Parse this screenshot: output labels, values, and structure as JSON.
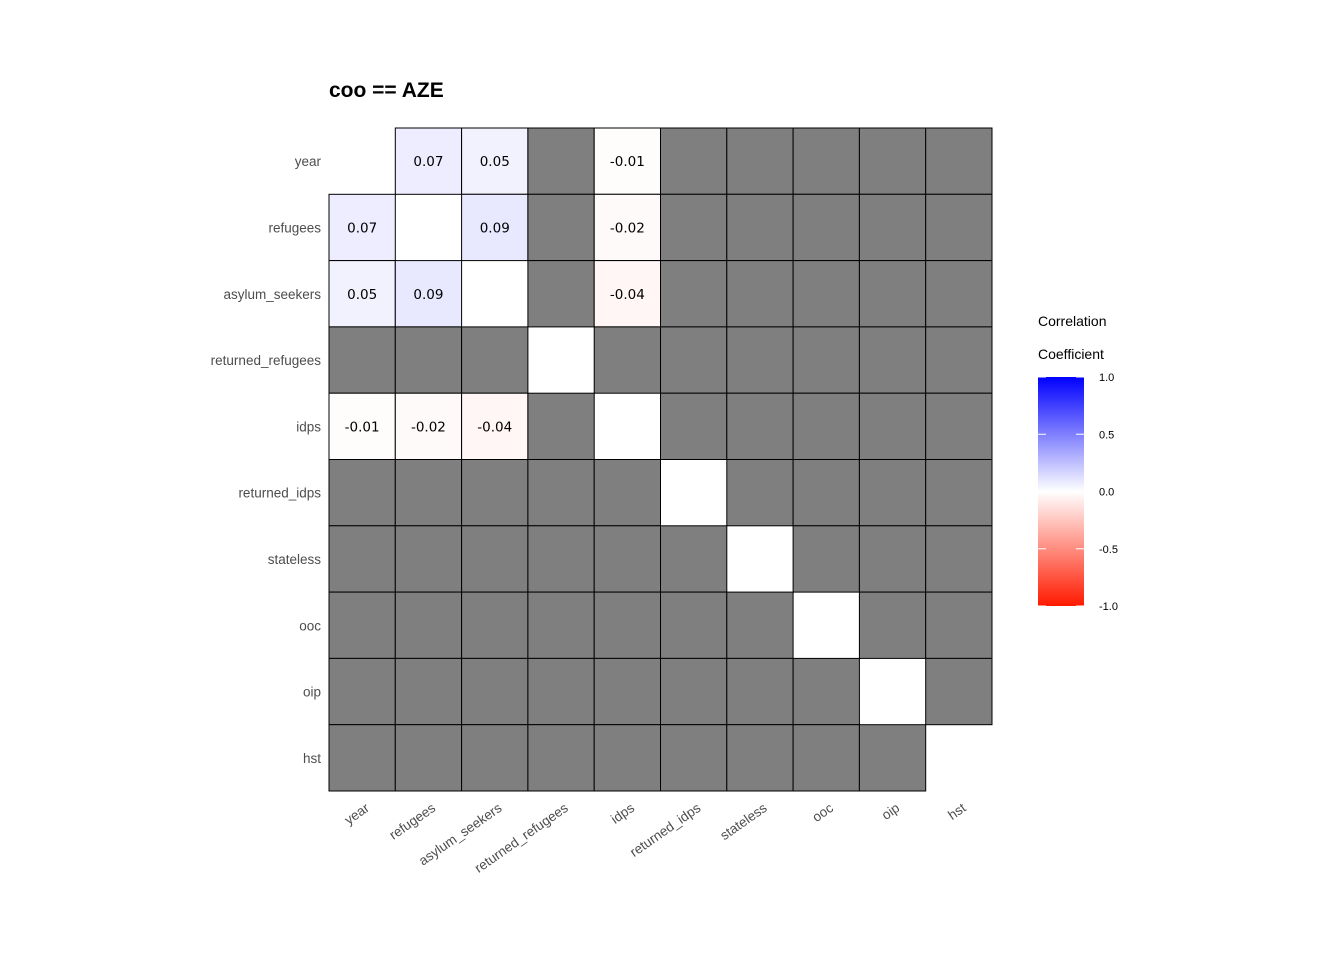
{
  "chart_data": {
    "type": "heatmap",
    "title": "coo == AZE",
    "variables": [
      "year",
      "refugees",
      "asylum_seekers",
      "returned_refugees",
      "idps",
      "returned_idps",
      "stateless",
      "ooc",
      "oip",
      "hst"
    ],
    "matrix": [
      [
        null,
        0.07,
        0.05,
        "NA",
        -0.01,
        "NA",
        "NA",
        "NA",
        "NA",
        "NA"
      ],
      [
        0.07,
        null,
        0.09,
        "NA",
        -0.02,
        "NA",
        "NA",
        "NA",
        "NA",
        "NA"
      ],
      [
        0.05,
        0.09,
        null,
        "NA",
        -0.04,
        "NA",
        "NA",
        "NA",
        "NA",
        "NA"
      ],
      [
        "NA",
        "NA",
        "NA",
        null,
        "NA",
        "NA",
        "NA",
        "NA",
        "NA",
        "NA"
      ],
      [
        -0.01,
        -0.02,
        -0.04,
        "NA",
        null,
        "NA",
        "NA",
        "NA",
        "NA",
        "NA"
      ],
      [
        "NA",
        "NA",
        "NA",
        "NA",
        "NA",
        null,
        "NA",
        "NA",
        "NA",
        "NA"
      ],
      [
        "NA",
        "NA",
        "NA",
        "NA",
        "NA",
        "NA",
        null,
        "NA",
        "NA",
        "NA"
      ],
      [
        "NA",
        "NA",
        "NA",
        "NA",
        "NA",
        "NA",
        "NA",
        null,
        "NA",
        "NA"
      ],
      [
        "NA",
        "NA",
        "NA",
        "NA",
        "NA",
        "NA",
        "NA",
        "NA",
        null,
        "NA"
      ],
      [
        "NA",
        "NA",
        "NA",
        "NA",
        "NA",
        "NA",
        "NA",
        "NA",
        "NA",
        null
      ]
    ],
    "fill_range": [
      -1,
      1
    ],
    "colors": {
      "low": "#ff1a00",
      "mid": "#ffffff",
      "high": "#0000ff",
      "na": "#7f7f7f",
      "border": "#000000"
    },
    "legend": {
      "title_lines": [
        "Correlation",
        "Coefficient"
      ],
      "ticks": [
        1.0,
        0.5,
        0.0,
        -0.5,
        -1.0
      ],
      "tick_labels": [
        "1.0",
        "0.5",
        "0.0",
        "-0.5",
        "-1.0"
      ],
      "position": "right"
    },
    "grid": false
  }
}
